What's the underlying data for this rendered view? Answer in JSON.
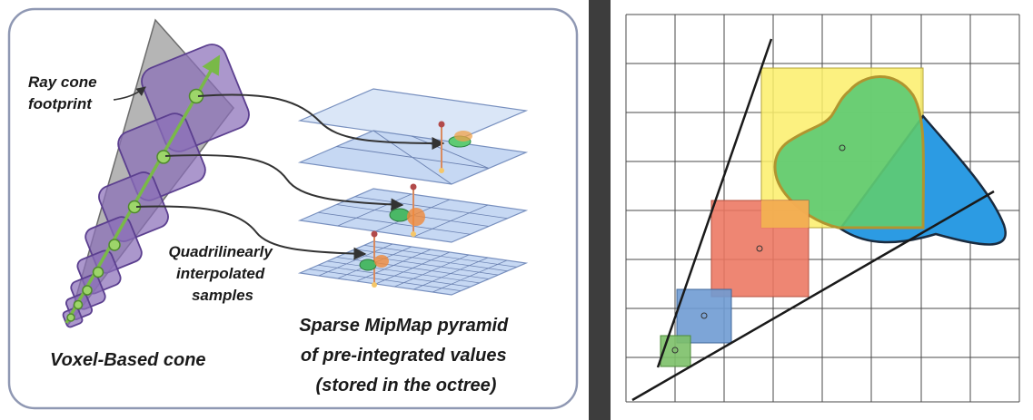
{
  "left_panel": {
    "ray_cone_label": [
      "Ray cone",
      "footprint"
    ],
    "samples_label": [
      "Quadrilinearly",
      "interpolated",
      "samples"
    ],
    "cone_label": "Voxel-Based cone",
    "pyramid_label": [
      "Sparse MipMap pyramid",
      "of pre-integrated values",
      "(stored in the octree)"
    ]
  },
  "colors": {
    "frame_border": "#8f98b3",
    "divider": "#3d3d3d",
    "cone_gray": "#a9a9a9",
    "footprint_purple": "#8a6fb8",
    "ray_green": "#79b948",
    "mip_blue": "#c6d8f3",
    "grid_line": "#555555",
    "yellow_sample": "#fcee6a",
    "green_blob": "#5ecb73",
    "blue_blob": "#2c9be3",
    "red_sample": "#ec7560",
    "blue_sample": "#6f9bd3",
    "small_green_sample": "#7cc068"
  }
}
